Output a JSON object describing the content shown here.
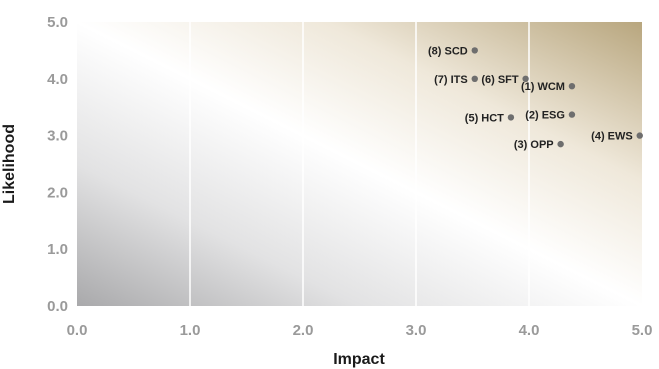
{
  "chart_data": {
    "type": "scatter",
    "title": "",
    "xlabel": "Impact",
    "ylabel": "Likelihood",
    "xlim": [
      0,
      5
    ],
    "ylim": [
      0,
      5
    ],
    "xticks": [
      "0.0",
      "1.0",
      "2.0",
      "3.0",
      "4.0",
      "5.0"
    ],
    "yticks": [
      "0.0",
      "1.0",
      "2.0",
      "3.0",
      "4.0",
      "5.0"
    ],
    "grid": "vertical",
    "background": "gradient from grey (low-left) through white to tan (high-right)",
    "colors": {
      "point": "#6e6e6e",
      "gradient_low": "#a9a9ab",
      "gradient_mid": "#ffffff",
      "gradient_high": "#b8a67e"
    },
    "points": [
      {
        "label": "(1) WCM",
        "x": 4.38,
        "y": 3.87
      },
      {
        "label": "(2) ESG",
        "x": 4.38,
        "y": 3.37
      },
      {
        "label": "(3) OPP",
        "x": 4.28,
        "y": 2.85
      },
      {
        "label": "(4) EWS",
        "x": 4.98,
        "y": 3.0
      },
      {
        "label": "(5) HCT",
        "x": 3.84,
        "y": 3.32
      },
      {
        "label": "(6) SFT",
        "x": 3.97,
        "y": 4.0
      },
      {
        "label": "(7) ITS",
        "x": 3.52,
        "y": 4.0
      },
      {
        "label": "(8) SCD",
        "x": 3.52,
        "y": 4.5
      }
    ]
  }
}
